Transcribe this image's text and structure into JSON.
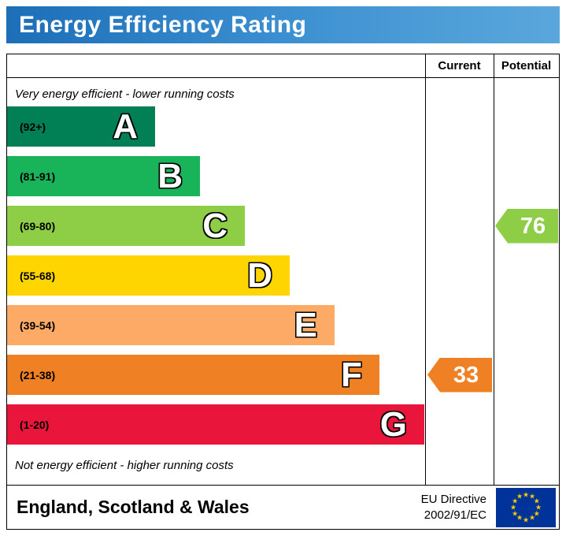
{
  "title": "Energy Efficiency Rating",
  "accent_blue": "#2c7cc0",
  "chart_data": {
    "type": "bar",
    "variant": "energy-efficiency-rating",
    "title": "Energy Efficiency Rating",
    "top_note": "Very energy efficient - lower running costs",
    "bottom_note": "Not energy efficient - higher running costs",
    "bands": [
      {
        "letter": "A",
        "range": "(92+)",
        "color": "#008054"
      },
      {
        "letter": "B",
        "range": "(81-91)",
        "color": "#19b459"
      },
      {
        "letter": "C",
        "range": "(69-80)",
        "color": "#8dce46"
      },
      {
        "letter": "D",
        "range": "(55-68)",
        "color": "#ffd500"
      },
      {
        "letter": "E",
        "range": "(39-54)",
        "color": "#fcaa65"
      },
      {
        "letter": "F",
        "range": "(21-38)",
        "color": "#ef8023"
      },
      {
        "letter": "G",
        "range": "(1-20)",
        "color": "#e9153b"
      }
    ],
    "current": {
      "label": "Current",
      "value": 33,
      "band": "F",
      "color": "#ef8023"
    },
    "potential": {
      "label": "Potential",
      "value": 76,
      "band": "C",
      "color": "#8dce46"
    }
  },
  "footer": {
    "region": "England, Scotland & Wales",
    "directive_line1": "EU Directive",
    "directive_line2": "2002/91/EC",
    "flag": {
      "background": "#003399",
      "star_color": "#ffcc00",
      "star_count": 12
    }
  }
}
